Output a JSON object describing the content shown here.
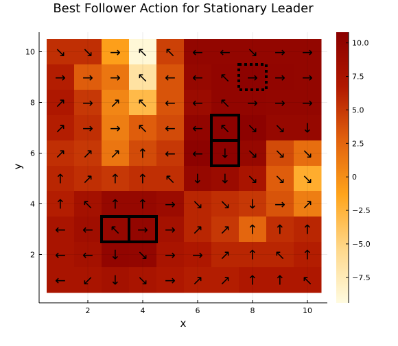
{
  "chart_data": {
    "type": "heatmap",
    "title": "Best Follower Action for Stationary Leader",
    "xlabel": "x",
    "ylabel": "y",
    "x_range": [
      0.5,
      10.5
    ],
    "y_range": [
      0.5,
      10.5
    ],
    "x_ticks": [
      2,
      4,
      6,
      8,
      10
    ],
    "y_ticks": [
      2,
      4,
      6,
      8,
      10
    ],
    "colorbar": {
      "min": -9.4,
      "max": 10.8,
      "ticks": [
        10.0,
        7.5,
        5.0,
        2.5,
        0,
        -2.5,
        -5.0,
        -7.5
      ],
      "tick_labels": [
        "10.0",
        "7.5",
        "5.0",
        "2.5",
        "0",
        "−2.5",
        "−5.0",
        "−7.5"
      ],
      "colors": [
        "#fffbe0",
        "#ffd88a",
        "#ffa41b",
        "#e2620d",
        "#b01800",
        "#8a0000"
      ]
    },
    "grid": true,
    "rows_top_to_bottom": [
      {
        "y": 10,
        "values": [
          5.5,
          5.5,
          -1.0,
          -9.0,
          4.5,
          9.8,
          9.8,
          9.8,
          9.8,
          9.8
        ],
        "arrows": [
          "↘",
          "↘",
          "→",
          "↖",
          "↖",
          "←",
          "←",
          "↘",
          "→",
          "→"
        ]
      },
      {
        "y": 9,
        "values": [
          6.5,
          3.0,
          1.5,
          -6.5,
          3.5,
          9.5,
          10.0,
          10.5,
          10.0,
          9.8
        ],
        "arrows": [
          "→",
          "→",
          "→",
          "↖",
          "←",
          "←",
          "↖",
          "→",
          "→",
          "→"
        ]
      },
      {
        "y": 8,
        "values": [
          7.0,
          5.0,
          0.5,
          -3.0,
          3.5,
          9.0,
          10.0,
          10.0,
          9.8,
          9.8
        ],
        "arrows": [
          "↗",
          "→",
          "↗",
          "↖",
          "←",
          "←",
          "↖",
          "→",
          "→",
          "→"
        ]
      },
      {
        "y": 7,
        "values": [
          6.5,
          5.5,
          1.0,
          3.0,
          4.0,
          10.0,
          10.5,
          10.5,
          9.5,
          9.5
        ],
        "arrows": [
          "↗",
          "→",
          "→",
          "↖",
          "←",
          "←",
          "↖",
          "↘",
          "↘",
          "↓"
        ]
      },
      {
        "y": 6,
        "values": [
          5.5,
          5.0,
          1.5,
          4.0,
          5.0,
          10.5,
          10.5,
          9.5,
          4.0,
          2.0
        ],
        "arrows": [
          "↗",
          "↗",
          "↗",
          "↑",
          "←",
          "←",
          "↓",
          "↘",
          "↘",
          "↘"
        ]
      },
      {
        "y": 5,
        "values": [
          6.0,
          5.5,
          5.0,
          5.5,
          5.5,
          9.5,
          9.0,
          7.5,
          3.0,
          -2.0
        ],
        "arrows": [
          "↑",
          "↗",
          "↑",
          "↑",
          "↖",
          "↓",
          "↓",
          "↘",
          "↘",
          "↘"
        ]
      },
      {
        "y": 4,
        "values": [
          6.5,
          8.0,
          9.5,
          9.5,
          9.0,
          6.0,
          5.5,
          5.0,
          3.5,
          1.0
        ],
        "arrows": [
          "↑",
          "↖",
          "↑",
          "↑",
          "→",
          "↘",
          "↘",
          "↓",
          "→",
          "↗"
        ]
      },
      {
        "y": 3,
        "values": [
          7.5,
          8.5,
          9.5,
          9.8,
          8.0,
          6.0,
          5.0,
          2.5,
          5.5,
          6.0
        ],
        "arrows": [
          "←",
          "←",
          "↖",
          "→",
          "→",
          "↗",
          "↗",
          "↑",
          "↑",
          "↑"
        ]
      },
      {
        "y": 2,
        "values": [
          7.5,
          8.0,
          10.0,
          9.8,
          7.5,
          7.0,
          6.0,
          6.0,
          6.0,
          6.5
        ],
        "arrows": [
          "←",
          "←",
          "↓",
          "↘",
          "→",
          "→",
          "↗",
          "↑",
          "↖",
          "↑"
        ]
      },
      {
        "y": 1,
        "values": [
          7.5,
          7.5,
          8.0,
          7.5,
          7.0,
          6.5,
          6.5,
          7.0,
          7.0,
          7.0
        ],
        "arrows": [
          "←",
          "↙",
          "↓",
          "↘",
          "→",
          "↗",
          "↗",
          "↑",
          "↑",
          "↖"
        ]
      }
    ],
    "highlight_boxes": [
      {
        "style": "solid",
        "x": [
          2.5,
          3.5
        ],
        "y": [
          2.5,
          3.5
        ]
      },
      {
        "style": "solid",
        "x": [
          3.5,
          4.5
        ],
        "y": [
          2.5,
          3.5
        ]
      },
      {
        "style": "solid",
        "x": [
          6.5,
          7.5
        ],
        "y": [
          5.5,
          6.5
        ]
      },
      {
        "style": "solid",
        "x": [
          6.5,
          7.5
        ],
        "y": [
          6.5,
          7.5
        ]
      },
      {
        "style": "dotted",
        "x": [
          7.5,
          8.5
        ],
        "y": [
          8.5,
          9.5
        ]
      }
    ]
  }
}
